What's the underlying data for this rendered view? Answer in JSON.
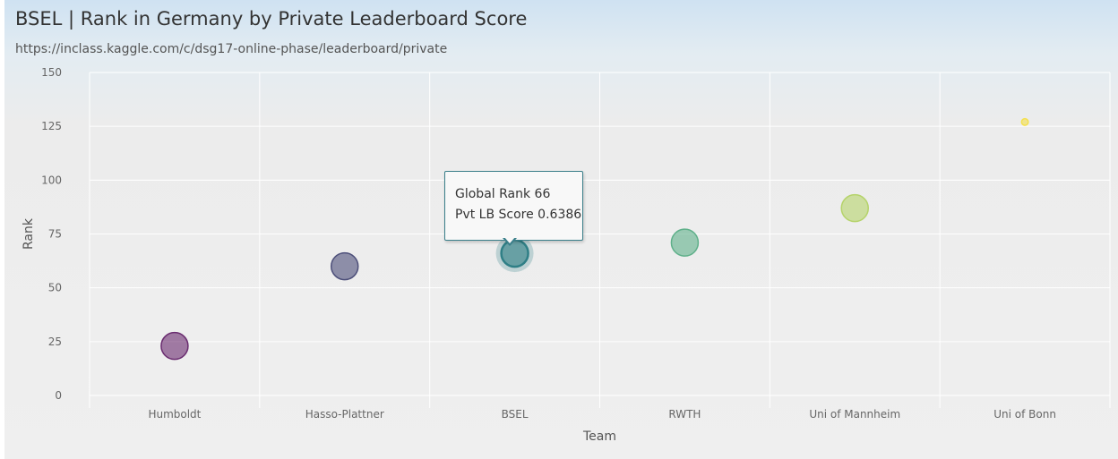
{
  "header": {
    "title": "BSEL | Rank in Germany by Private Leaderboard Score",
    "subtitle": "https://inclass.kaggle.com/c/dsg17-online-phase/leaderboard/private"
  },
  "tooltip": {
    "line1": "Global Rank 66",
    "line2": "Pvt LB Score 0.6386"
  },
  "chart_data": {
    "type": "scatter",
    "title": "BSEL | Rank in Germany by Private Leaderboard Score",
    "subtitle": "https://inclass.kaggle.com/c/dsg17-online-phase/leaderboard/private",
    "xlabel": "Team",
    "ylabel": "Rank",
    "ylim": [
      0,
      150
    ],
    "yticks": [
      0,
      25,
      50,
      75,
      100,
      125,
      150
    ],
    "grid": true,
    "categories": [
      "Humboldt",
      "Hasso-Plattner",
      "BSEL",
      "RWTH",
      "Uni of Mannheim",
      "Uni of Bonn"
    ],
    "values": [
      23,
      60,
      66,
      71,
      87,
      127
    ],
    "point_colors": [
      "#6a2c70",
      "#4d4f7a",
      "#2f7f86",
      "#5fb08a",
      "#b5d36a",
      "#f4e04d"
    ],
    "point_size": [
      1,
      1,
      1,
      1,
      1,
      0.25
    ],
    "highlighted_category": "BSEL"
  }
}
